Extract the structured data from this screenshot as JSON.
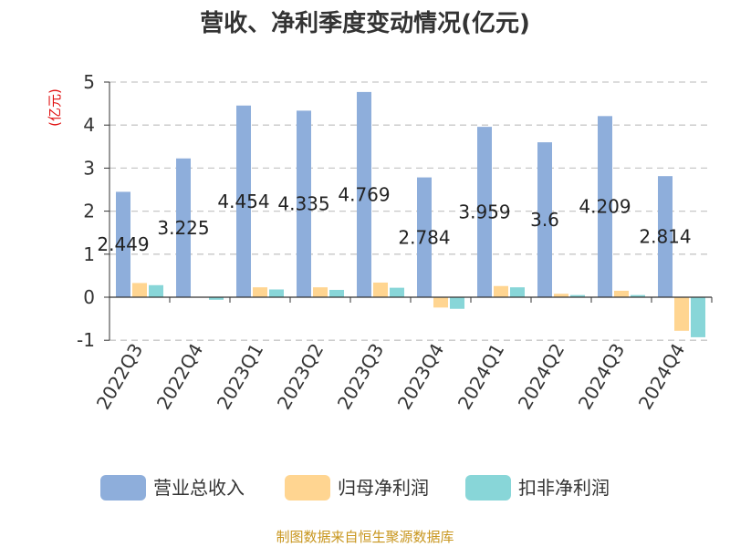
{
  "chart_data": {
    "type": "bar",
    "title": "营收、净利季度变动情况(亿元)",
    "ylabel": "(亿元)",
    "xlabel": "",
    "ylim": [
      -1,
      5
    ],
    "yticks": [
      -1,
      0,
      1,
      2,
      3,
      4,
      5
    ],
    "grid": true,
    "legend_position": "bottom",
    "categories": [
      "2022Q3",
      "2022Q4",
      "2023Q1",
      "2023Q2",
      "2023Q3",
      "2023Q4",
      "2024Q1",
      "2024Q2",
      "2024Q3",
      "2024Q4"
    ],
    "series": [
      {
        "name": "营业总收入",
        "color": "#8eaedb",
        "values": [
          2.449,
          3.225,
          4.454,
          4.335,
          4.769,
          2.784,
          3.959,
          3.6,
          4.209,
          2.814
        ]
      },
      {
        "name": "归母净利润",
        "color": "#ffd591",
        "values": [
          0.33,
          0.01,
          0.23,
          0.23,
          0.34,
          -0.24,
          0.26,
          0.08,
          0.15,
          -0.78
        ]
      },
      {
        "name": "扣非净利润",
        "color": "#88d6d8",
        "values": [
          0.28,
          -0.06,
          0.18,
          0.17,
          0.22,
          -0.27,
          0.23,
          0.05,
          0.05,
          -0.93
        ]
      }
    ],
    "data_labels": [
      "2.449",
      "3.225",
      "4.454",
      "4.335",
      "4.769",
      "2.784",
      "3.959",
      "3.6",
      "4.209",
      "2.814"
    ]
  },
  "footer": {
    "source": "制图数据来自恒生聚源数据库"
  }
}
